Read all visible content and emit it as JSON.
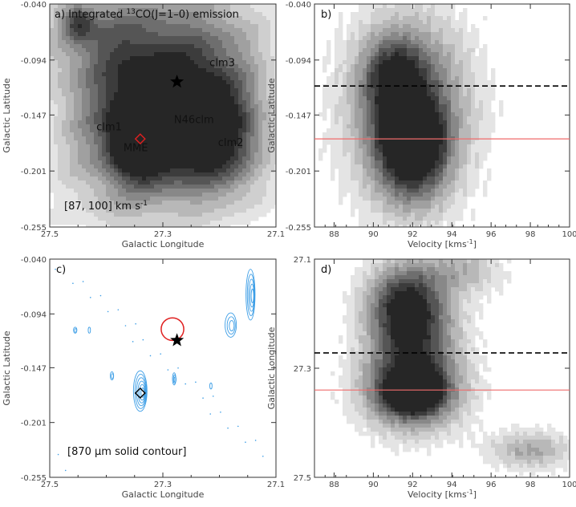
{
  "chart_data": [
    {
      "id": "a",
      "type": "heatmap",
      "panel_label": "a)",
      "title_prefix": "Integrated ",
      "title_sup": "13",
      "title_suffix": "CO(J=1–0) emission",
      "xlabel": "Galactic Longitude",
      "ylabel": "Galactic Latitude",
      "xlim": [
        27.5,
        27.1
      ],
      "ylim": [
        -0.255,
        -0.04
      ],
      "xticks": [
        "27.5",
        "27.3",
        "27.1"
      ],
      "yticks": [
        "-0.040",
        "-0.094",
        "-0.147",
        "-0.201",
        "-0.255"
      ],
      "velocity_range_label": "[87, 100] km s",
      "velocity_range_sup": "-1",
      "labels": [
        {
          "text": "clm1",
          "x": 27.395,
          "y": -0.162
        },
        {
          "text": "MME",
          "x": 27.348,
          "y": -0.182
        },
        {
          "text": "N46clm",
          "x": 27.245,
          "y": -0.155
        },
        {
          "text": "clm2",
          "x": 27.18,
          "y": -0.177
        },
        {
          "text": "clm3",
          "x": 27.195,
          "y": -0.1
        },
        {
          "text": "",
          "x": 0,
          "y": 0
        }
      ],
      "star": {
        "x": 27.275,
        "y": -0.115
      },
      "diamond": {
        "x": 27.34,
        "y": -0.17
      },
      "blobs": [
        {
          "x": 27.35,
          "y": -0.155,
          "sx": 0.085,
          "sy": 0.062,
          "a": 1.0
        },
        {
          "x": 27.34,
          "y": -0.168,
          "sx": 0.03,
          "sy": 0.022,
          "a": 1.4
        },
        {
          "x": 27.25,
          "y": -0.158,
          "sx": 0.06,
          "sy": 0.04,
          "a": 0.7
        },
        {
          "x": 27.18,
          "y": -0.178,
          "sx": 0.05,
          "sy": 0.04,
          "a": 0.55
        },
        {
          "x": 27.2,
          "y": -0.1,
          "sx": 0.07,
          "sy": 0.06,
          "a": 0.5
        },
        {
          "x": 27.38,
          "y": -0.07,
          "sx": 0.1,
          "sy": 0.035,
          "a": 0.5
        },
        {
          "x": 27.45,
          "y": -0.058,
          "sx": 0.02,
          "sy": 0.012,
          "a": 0.6
        }
      ]
    },
    {
      "id": "b",
      "type": "heatmap",
      "panel_label": "b)",
      "xlabel": "Velocity [kms",
      "xlabel_sup": "-1",
      "xlabel_end": "]",
      "ylabel": "Galactic Latitude",
      "xlim": [
        87,
        100
      ],
      "ylim": [
        -0.255,
        -0.04
      ],
      "xticks": [
        "88",
        "90",
        "92",
        "94",
        "96",
        "98",
        "100"
      ],
      "yticks": [
        "-0.040",
        "-0.094",
        "-0.147",
        "-0.201",
        "-0.255"
      ],
      "dashed_line_y": -0.119,
      "red_line_y": -0.17,
      "blobs": [
        {
          "x": 91.8,
          "y": -0.14,
          "sx": 2.1,
          "sy": 0.06,
          "a": 1.0
        },
        {
          "x": 92.0,
          "y": -0.168,
          "sx": 1.0,
          "sy": 0.022,
          "a": 0.9
        },
        {
          "x": 91.0,
          "y": -0.11,
          "sx": 1.0,
          "sy": 0.025,
          "a": 0.6
        },
        {
          "x": 92.0,
          "y": -0.2,
          "sx": 1.3,
          "sy": 0.03,
          "a": 0.5
        }
      ]
    },
    {
      "id": "c",
      "type": "scatter",
      "panel_label": "c)",
      "xlabel": "Galactic Longitude",
      "ylabel": "Galactic Latitude",
      "xlim": [
        27.5,
        27.1
      ],
      "ylim": [
        -0.255,
        -0.04
      ],
      "xticks": [
        "27.5",
        "27.3",
        "27.1"
      ],
      "yticks": [
        "-0.040",
        "-0.094",
        "-0.147",
        "-0.201",
        "-0.255"
      ],
      "legend_text": "[870 μm solid contour]",
      "contour_color": "#3d9ee6",
      "star": {
        "x": 27.275,
        "y": -0.12
      },
      "diamond": {
        "x": 27.34,
        "y": -0.172
      },
      "circle": {
        "x": 27.283,
        "y": -0.109,
        "r_deg": 0.02
      },
      "sources": [
        {
          "x": 27.34,
          "y": -0.17,
          "rx": 0.012,
          "ry": 0.02,
          "n": 6
        },
        {
          "x": 27.28,
          "y": -0.158,
          "rx": 0.003,
          "ry": 0.006,
          "n": 3
        },
        {
          "x": 27.39,
          "y": -0.155,
          "rx": 0.003,
          "ry": 0.004,
          "n": 2
        },
        {
          "x": 27.18,
          "y": -0.105,
          "rx": 0.01,
          "ry": 0.012,
          "n": 3
        },
        {
          "x": 27.145,
          "y": -0.075,
          "rx": 0.008,
          "ry": 0.025,
          "n": 5
        },
        {
          "x": 27.455,
          "y": -0.11,
          "rx": 0.003,
          "ry": 0.003,
          "n": 2
        },
        {
          "x": 27.43,
          "y": -0.11,
          "rx": 0.002,
          "ry": 0.003,
          "n": 1
        },
        {
          "x": 27.215,
          "y": -0.165,
          "rx": 0.002,
          "ry": 0.003,
          "n": 1
        }
      ]
    },
    {
      "id": "d",
      "type": "heatmap",
      "panel_label": "d)",
      "xlabel": "Velocity [kms",
      "xlabel_sup": "-1",
      "xlabel_end": "]",
      "ylabel": "Galactic Longitude",
      "xlim": [
        87,
        100
      ],
      "ylim": [
        27.5,
        27.1
      ],
      "xticks": [
        "88",
        "90",
        "92",
        "94",
        "96",
        "98",
        "100"
      ],
      "yticks": [
        "27.1",
        "27.3",
        "27.5"
      ],
      "dashed_line_y": 27.272,
      "red_line_y": 27.34,
      "blobs": [
        {
          "x": 92.0,
          "y": 27.34,
          "sx": 1.7,
          "sy": 0.05,
          "a": 1.3
        },
        {
          "x": 92.0,
          "y": 27.345,
          "sx": 0.8,
          "sy": 0.02,
          "a": 0.9
        },
        {
          "x": 92.0,
          "y": 27.22,
          "sx": 1.6,
          "sy": 0.06,
          "a": 0.9
        },
        {
          "x": 91.5,
          "y": 27.17,
          "sx": 1.3,
          "sy": 0.05,
          "a": 0.6
        },
        {
          "x": 98.0,
          "y": 27.45,
          "sx": 1.5,
          "sy": 0.025,
          "a": 0.5
        },
        {
          "x": 94.5,
          "y": 27.12,
          "sx": 1.5,
          "sy": 0.03,
          "a": 0.4
        }
      ]
    }
  ]
}
